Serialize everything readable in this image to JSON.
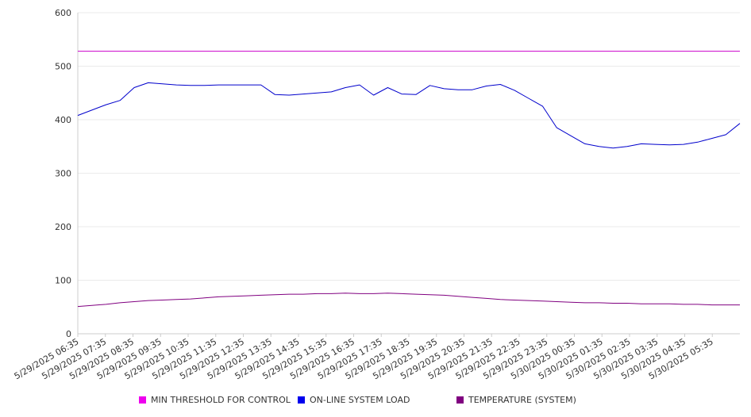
{
  "chart_data": {
    "type": "line",
    "title": "",
    "xlabel": "",
    "ylabel": "",
    "ylim": [
      0,
      600
    ],
    "yticks": [
      0,
      100,
      200,
      300,
      400,
      500,
      600
    ],
    "grid": true,
    "legend_position": "bottom",
    "x_tick_labels": [
      "5/29/2025 06:35",
      "5/29/2025 07:35",
      "5/29/2025 08:35",
      "5/29/2025 09:35",
      "5/29/2025 10:35",
      "5/29/2025 11:35",
      "5/29/2025 12:35",
      "5/29/2025 13:35",
      "5/29/2025 14:35",
      "5/29/2025 15:35",
      "5/29/2025 16:35",
      "5/29/2025 17:35",
      "5/29/2025 18:35",
      "5/29/2025 19:35",
      "5/29/2025 20:35",
      "5/29/2025 21:35",
      "5/29/2025 22:35",
      "5/29/2025 23:35",
      "5/30/2025 00:35",
      "5/30/2025 01:35",
      "5/30/2025 02:35",
      "5/30/2025 03:35",
      "5/30/2025 04:35",
      "5/30/2025 05:35"
    ],
    "x": [
      "5/29/2025 06:35",
      "5/29/2025 07:05",
      "5/29/2025 07:35",
      "5/29/2025 08:05",
      "5/29/2025 08:35",
      "5/29/2025 09:05",
      "5/29/2025 09:35",
      "5/29/2025 10:05",
      "5/29/2025 10:35",
      "5/29/2025 11:05",
      "5/29/2025 11:35",
      "5/29/2025 12:05",
      "5/29/2025 12:35",
      "5/29/2025 13:05",
      "5/29/2025 13:35",
      "5/29/2025 14:05",
      "5/29/2025 14:35",
      "5/29/2025 15:05",
      "5/29/2025 15:35",
      "5/29/2025 16:05",
      "5/29/2025 16:35",
      "5/29/2025 17:05",
      "5/29/2025 17:35",
      "5/29/2025 18:05",
      "5/29/2025 18:35",
      "5/29/2025 19:05",
      "5/29/2025 19:35",
      "5/29/2025 20:05",
      "5/29/2025 20:35",
      "5/29/2025 21:05",
      "5/29/2025 21:35",
      "5/29/2025 22:05",
      "5/29/2025 22:35",
      "5/29/2025 23:05",
      "5/29/2025 23:35",
      "5/30/2025 00:05",
      "5/30/2025 00:35",
      "5/30/2025 01:05",
      "5/30/2025 01:35",
      "5/30/2025 02:05",
      "5/30/2025 02:35",
      "5/30/2025 03:05",
      "5/30/2025 03:35",
      "5/30/2025 04:05",
      "5/30/2025 04:35",
      "5/30/2025 05:05",
      "5/30/2025 05:35",
      "5/30/2025 06:05"
    ],
    "series": [
      {
        "name": "MIN THRESHOLD FOR CONTROL",
        "color": "#cc00cc",
        "values": [
          528,
          528,
          528,
          528,
          528,
          528,
          528,
          528,
          528,
          528,
          528,
          528,
          528,
          528,
          528,
          528,
          528,
          528,
          528,
          528,
          528,
          528,
          528,
          528,
          528,
          528,
          528,
          528,
          528,
          528,
          528,
          528,
          528,
          528,
          528,
          528,
          528,
          528,
          528,
          528,
          528,
          528,
          528,
          528,
          528,
          528,
          528,
          528
        ]
      },
      {
        "name": "ON-LINE SYSTEM LOAD",
        "color": "#0000cc",
        "values": [
          408,
          418,
          428,
          436,
          460,
          469,
          467,
          465,
          464,
          464,
          465,
          465,
          465,
          465,
          447,
          446,
          448,
          450,
          452,
          460,
          465,
          446,
          460,
          448,
          447,
          464,
          458,
          456,
          456,
          463,
          466,
          455,
          440,
          425,
          385,
          370,
          355,
          350,
          347,
          350,
          355,
          354,
          353,
          354,
          358,
          365,
          372,
          393
        ]
      },
      {
        "name": "TEMPERATURE (SYSTEM)",
        "color": "#800080",
        "values": [
          51,
          53,
          55,
          58,
          60,
          62,
          63,
          64,
          65,
          67,
          69,
          70,
          71,
          72,
          73,
          74,
          74,
          75,
          75,
          76,
          75,
          75,
          76,
          75,
          74,
          73,
          72,
          70,
          68,
          66,
          64,
          63,
          62,
          61,
          60,
          59,
          58,
          58,
          57,
          57,
          56,
          56,
          56,
          55,
          55,
          54,
          54,
          54
        ]
      }
    ]
  }
}
